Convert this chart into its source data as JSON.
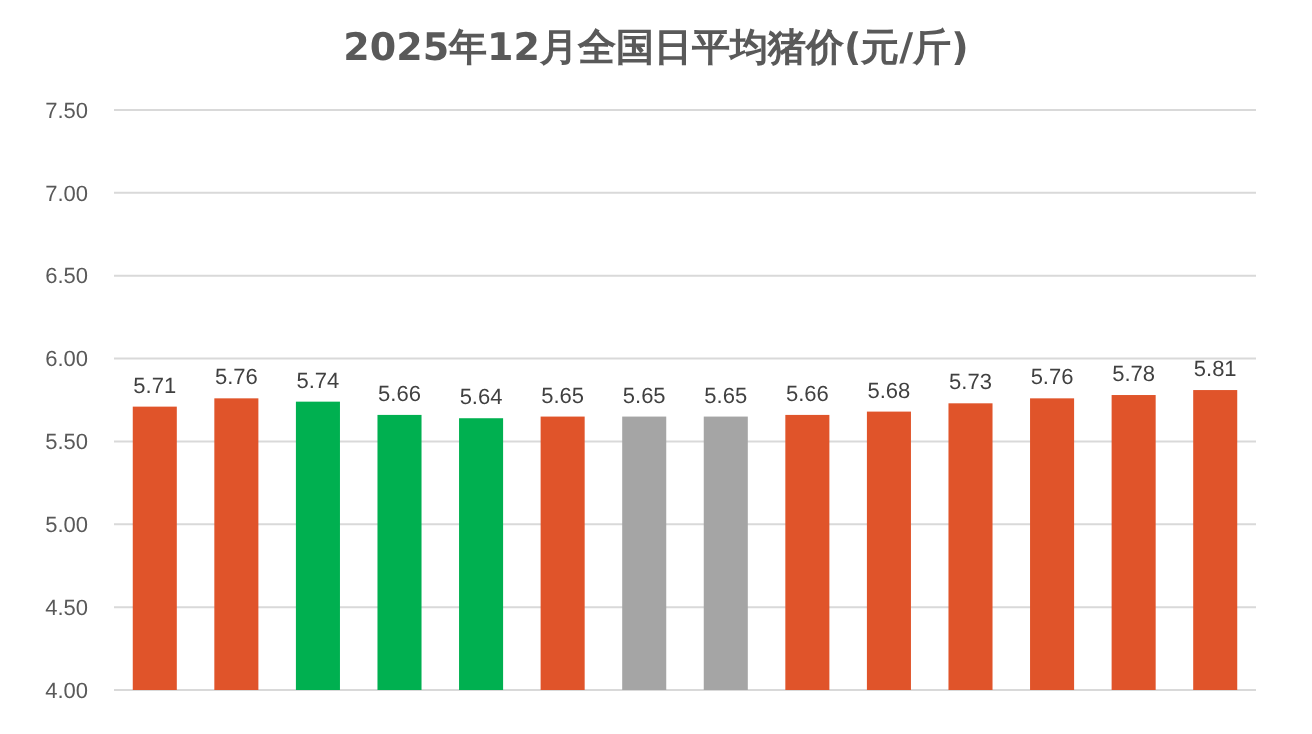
{
  "chart_data": {
    "type": "bar",
    "title": "2025年12月全国日平均猪价(元/斤)",
    "categories": [
      null,
      null,
      null,
      null,
      null,
      null,
      null,
      null,
      null,
      null,
      null,
      null,
      null,
      null
    ],
    "values": [
      5.71,
      5.76,
      5.74,
      5.66,
      5.64,
      5.65,
      5.65,
      5.65,
      5.66,
      5.68,
      5.73,
      5.76,
      5.78,
      5.81
    ],
    "colors": [
      "#e0542a",
      "#e0542a",
      "#00b050",
      "#00b050",
      "#00b050",
      "#e0542a",
      "#a5a5a5",
      "#a5a5a5",
      "#e0542a",
      "#e0542a",
      "#e0542a",
      "#e0542a",
      "#e0542a",
      "#e0542a"
    ],
    "ylim": [
      4,
      7.5
    ],
    "yticks": [
      {
        "value": 4,
        "label": "4.00"
      },
      {
        "value": 4.5,
        "label": "4.50"
      },
      {
        "value": 5,
        "label": "5.00"
      },
      {
        "value": 5.5,
        "label": "5.50"
      },
      {
        "value": 6,
        "label": "6.00"
      },
      {
        "value": 6.5,
        "label": "6.50"
      },
      {
        "value": 7,
        "label": "7.00"
      },
      {
        "value": 7.5,
        "label": "7.50"
      }
    ],
    "grid": true,
    "data_labels": true
  }
}
